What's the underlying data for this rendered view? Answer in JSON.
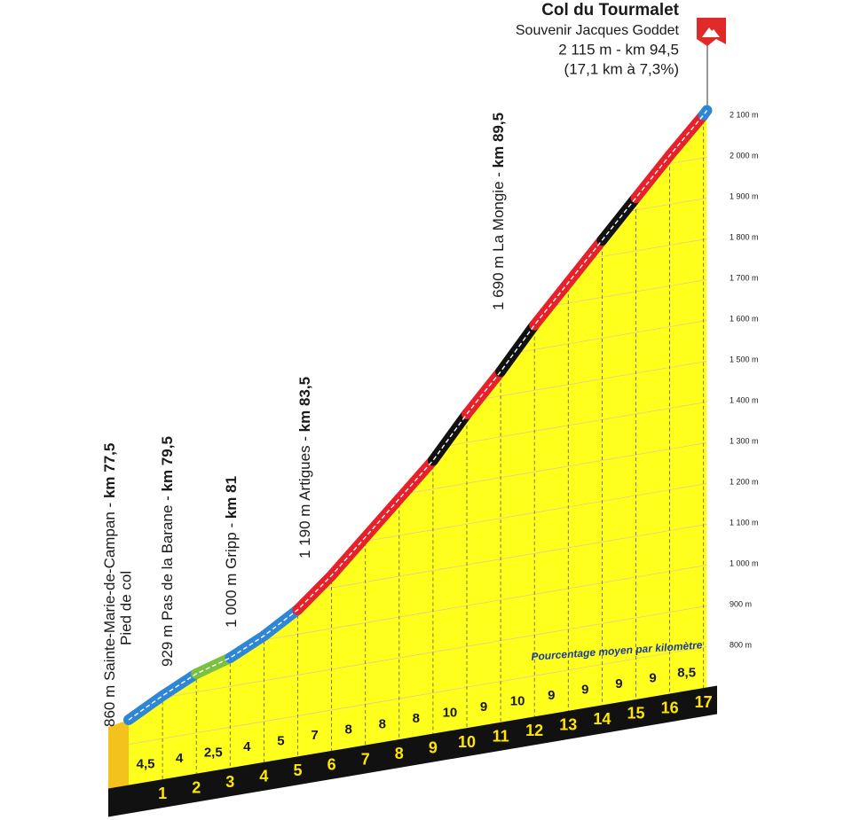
{
  "chart_data": {
    "type": "profile",
    "title": "Col du Tourmalet",
    "subtitle": [
      "Souvenir Jacques Goddet",
      "2 115 m - km 94,5",
      "(17,1 km à 7,3%)"
    ],
    "note": "Pourcentage moyen par kilomètre",
    "x": [
      0,
      1,
      2,
      3,
      4,
      5,
      6,
      7,
      8,
      9,
      10,
      11,
      12,
      13,
      14,
      15,
      16,
      17,
      17.1
    ],
    "elevation": [
      860,
      905,
      945,
      970,
      1010,
      1060,
      1130,
      1210,
      1290,
      1370,
      1470,
      1560,
      1660,
      1750,
      1840,
      1930,
      2020,
      2105,
      2115
    ],
    "segment_colors": [
      "#2e86d6",
      "#2e86d6",
      "#7ac142",
      "#2e86d6",
      "#2e86d6",
      "#e8202a",
      "#e8202a",
      "#e8202a",
      "#e8202a",
      "#111111",
      "#e8202a",
      "#111111",
      "#e8202a",
      "#e8202a",
      "#111111",
      "#e8202a",
      "#e8202a",
      "#2e86d6"
    ],
    "gradients": {
      "values": [
        4.5,
        4,
        2.5,
        4,
        5,
        7,
        8,
        8,
        8,
        10,
        9,
        10,
        9,
        9,
        9,
        9,
        8.5
      ],
      "value_labels": [
        "4,5",
        "4",
        "2,5",
        "4",
        "5",
        "7",
        "8",
        "8",
        "8",
        "10",
        "9",
        "10",
        "9",
        "9",
        "9",
        "9",
        "8,5"
      ]
    },
    "km_ticks": [
      1,
      2,
      3,
      4,
      5,
      6,
      7,
      8,
      9,
      10,
      11,
      12,
      13,
      14,
      15,
      16,
      17
    ],
    "xlim": [
      0,
      17.1
    ],
    "ylim": [
      700,
      2150
    ],
    "yticks": [
      {
        "value": 800,
        "label": "800 m"
      },
      {
        "value": 900,
        "label": "900 m"
      },
      {
        "value": 1000,
        "label": "1 000 m"
      },
      {
        "value": 1100,
        "label": "1 100 m"
      },
      {
        "value": 1200,
        "label": "1 200 m"
      },
      {
        "value": 1300,
        "label": "1 300 m"
      },
      {
        "value": 1400,
        "label": "1 400 m"
      },
      {
        "value": 1500,
        "label": "1 500 m"
      },
      {
        "value": 1600,
        "label": "1 600 m"
      },
      {
        "value": 1700,
        "label": "1 700 m"
      },
      {
        "value": 1800,
        "label": "1 800 m"
      },
      {
        "value": 1900,
        "label": "1 900 m"
      },
      {
        "value": 2000,
        "label": "2 000 m"
      },
      {
        "value": 2100,
        "label": "2 100 m"
      }
    ],
    "grid": true,
    "passes": [
      {
        "text": "860 m Sainte-Marie-de-Campan - ",
        "km": "km 77,5",
        "note": "Pied de col"
      },
      {
        "text": "929 m Pas de la Barane - ",
        "km": "km 79,5"
      },
      {
        "text": "1 000 m Gripp - ",
        "km": "km 81"
      },
      {
        "text": "1 190 m Artigues - ",
        "km": "km 83,5"
      },
      {
        "text": "1 690 m La Mongie - ",
        "km": "km 89,5"
      }
    ]
  }
}
